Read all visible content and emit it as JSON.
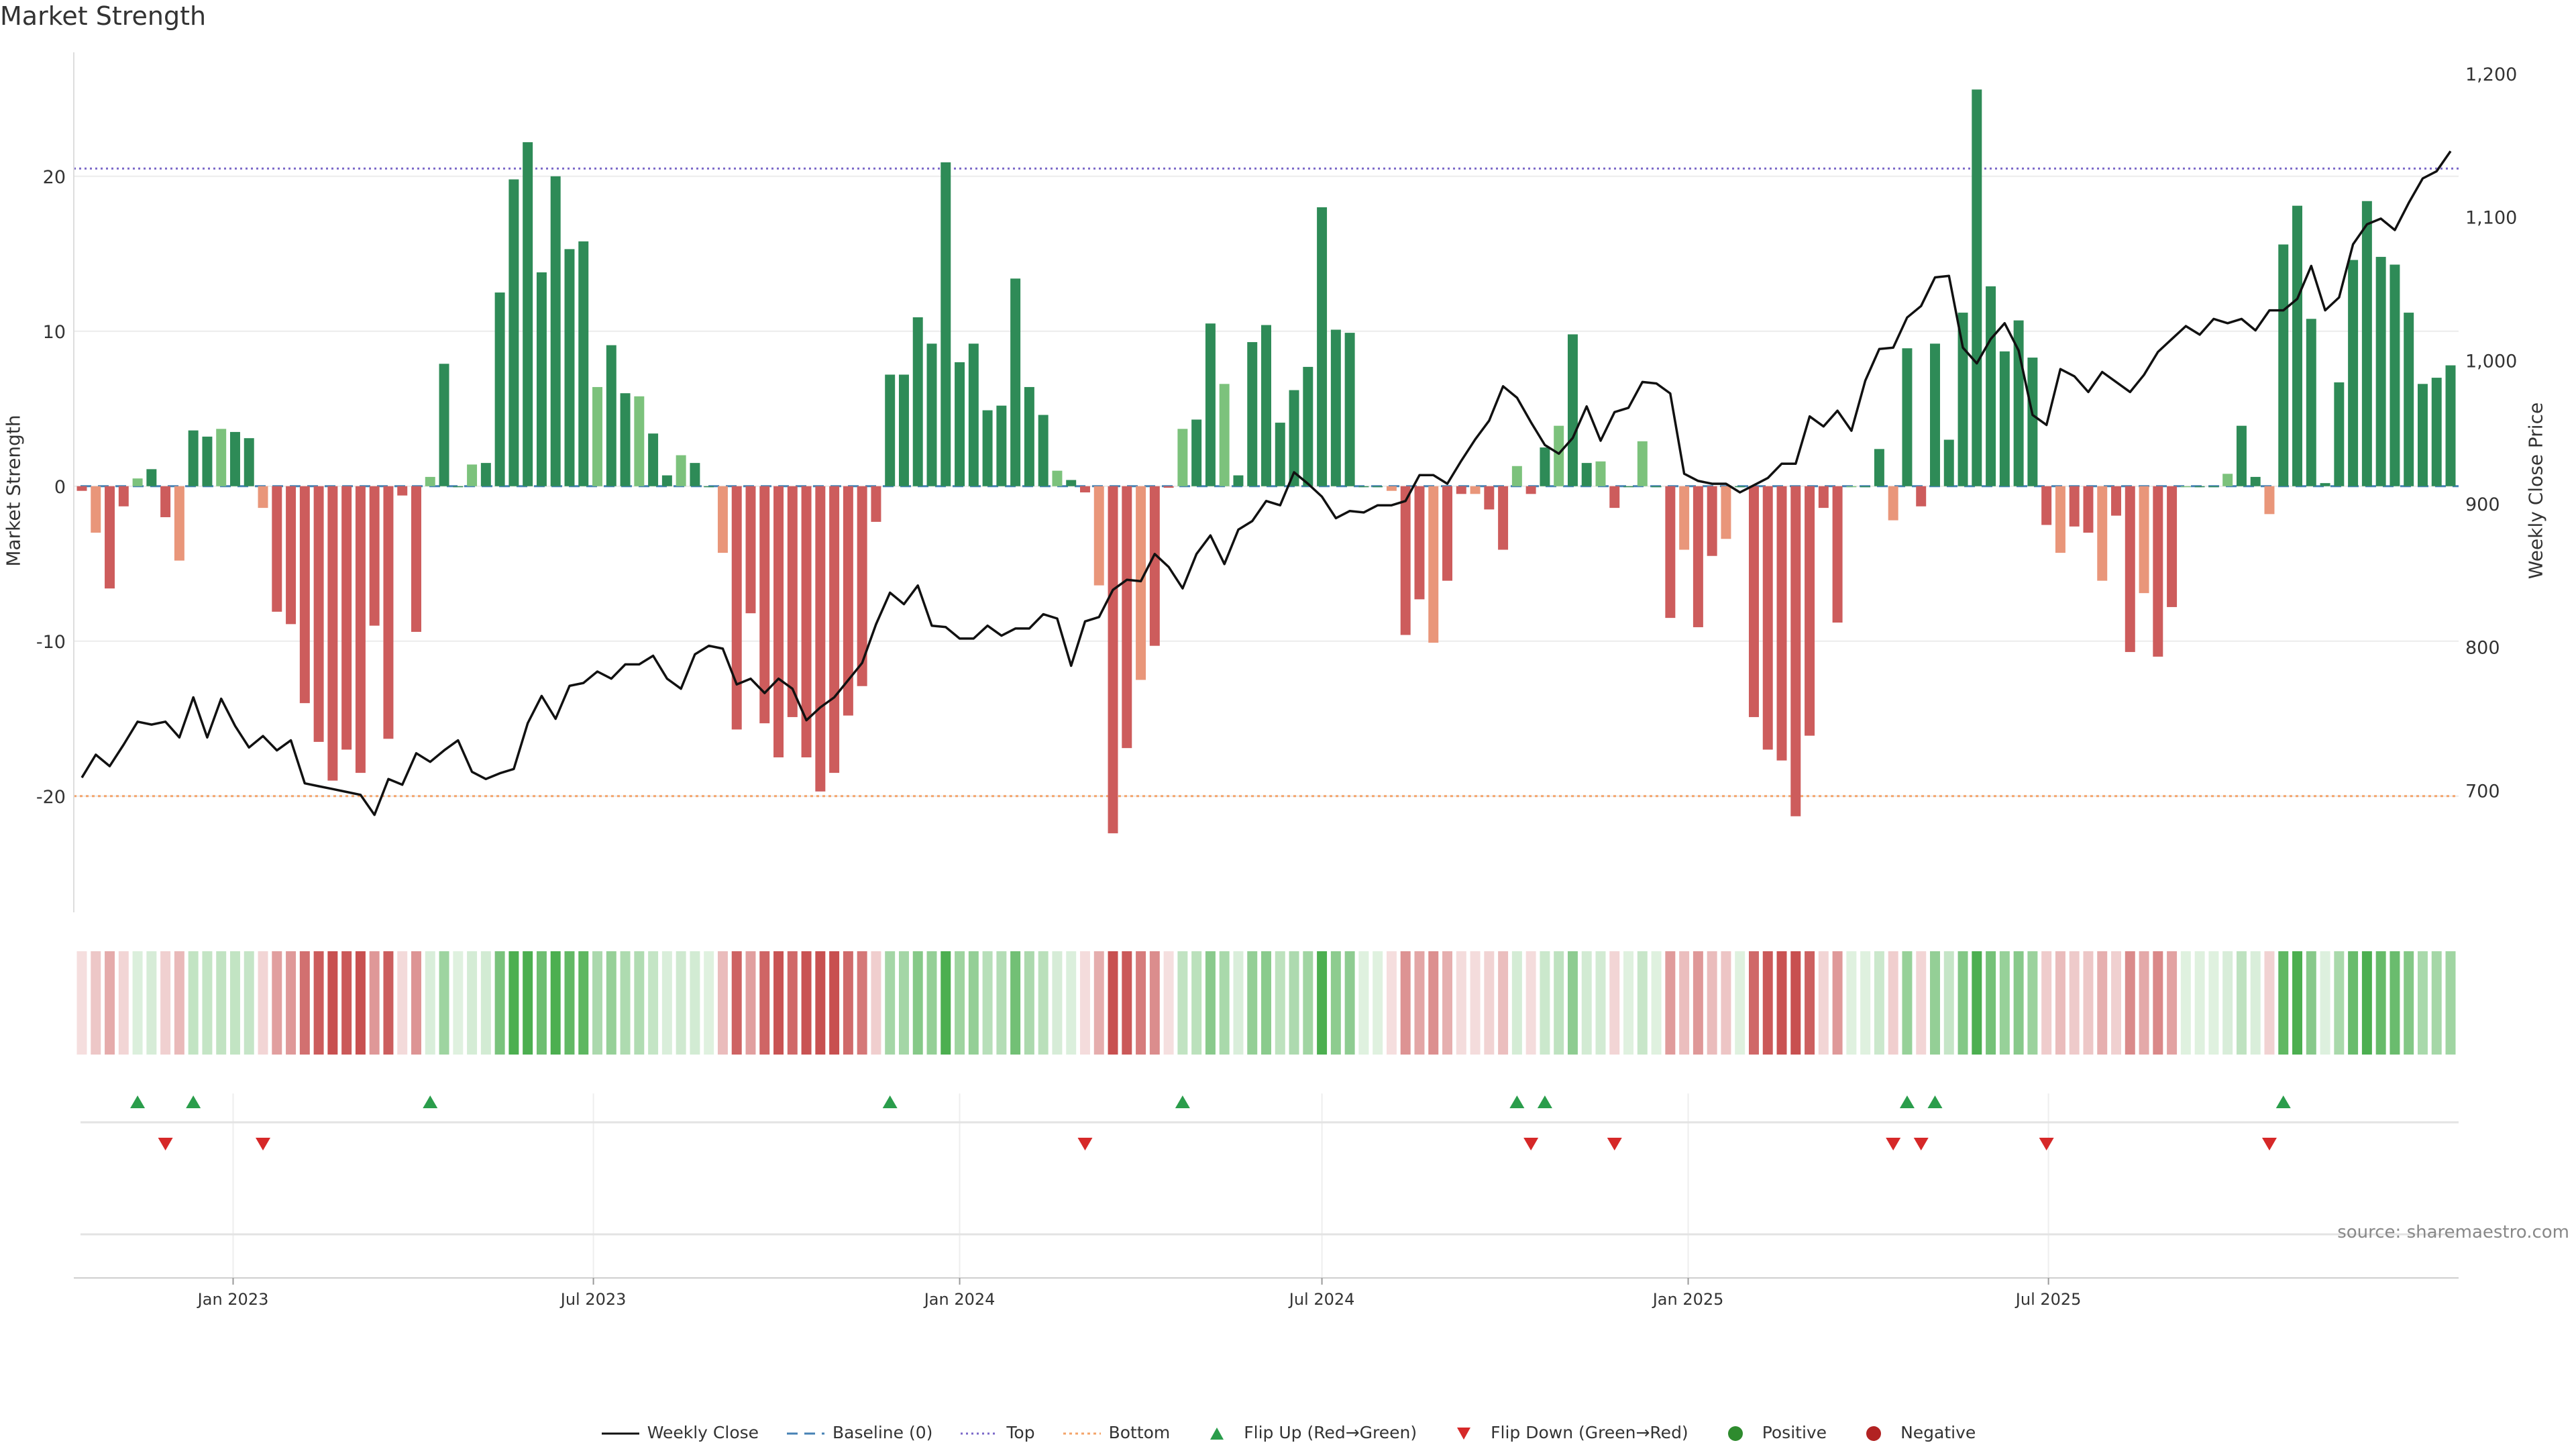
{
  "title": "Market Strength",
  "left_axis_label": "Market Strength",
  "right_axis_label": "Weekly Close Price",
  "source": "source: sharemaestro.com",
  "colors": {
    "strong_pos": "#2e8b57",
    "weak_pos": "#7cc27c",
    "strong_neg": "#cd5c5c",
    "weak_neg": "#e9967a",
    "price_line": "#111111",
    "top_line": "#7b68c8",
    "bottom_line": "#f4a46a",
    "baseline": "#4682b4",
    "flip_up": "#2a9d4b",
    "flip_down": "#d62828"
  },
  "legend": [
    {
      "label": "Weekly Close",
      "symbol": "line"
    },
    {
      "label": "Baseline (0)",
      "symbol": "dash"
    },
    {
      "label": "Top",
      "symbol": "dot-purple"
    },
    {
      "label": "Bottom",
      "symbol": "dot-orange"
    },
    {
      "label": "Flip Up (Red→Green)",
      "symbol": "triangle-up"
    },
    {
      "label": "Flip Down (Green→Red)",
      "symbol": "triangle-down"
    },
    {
      "label": "Positive",
      "symbol": "circle-green"
    },
    {
      "label": "Negative",
      "symbol": "circle-red"
    }
  ],
  "chart_data": {
    "type": "bar",
    "x_start": "2022-10-17",
    "x_step_days": 7,
    "left_ylim": [
      -27.5,
      28
    ],
    "left_yticks": [
      -20,
      -10,
      0,
      10,
      20
    ],
    "right_ylim": [
      615,
      1215
    ],
    "right_yticks": [
      700,
      800,
      900,
      1000,
      1100,
      1200
    ],
    "right_ytick_labels": [
      "700",
      "800",
      "900",
      "1,000",
      "1,100",
      "1,200"
    ],
    "top_level": 20.5,
    "bottom_level": -20,
    "x_tick_labels": [
      {
        "date": "2023-01-01",
        "label": "Jan 2023"
      },
      {
        "date": "2023-07-01",
        "label": "Jul 2023"
      },
      {
        "date": "2024-01-01",
        "label": "Jan 2024"
      },
      {
        "date": "2024-07-01",
        "label": "Jul 2024"
      },
      {
        "date": "2025-01-01",
        "label": "Jan 2025"
      },
      {
        "date": "2025-07-01",
        "label": "Jul 2025"
      }
    ],
    "strength": [
      -0.3,
      -3,
      -6.6,
      -1.3,
      0.5,
      1.1,
      -2,
      -4.8,
      3.6,
      3.2,
      3.7,
      3.5,
      3.1,
      -1.4,
      -8.1,
      -8.9,
      -14,
      -16.5,
      -19,
      -17,
      -18.5,
      -9,
      -16.3,
      -0.6,
      -9.4,
      0.6,
      7.9,
      0,
      1.4,
      1.5,
      12.5,
      19.8,
      22.2,
      13.8,
      20,
      15.3,
      15.8,
      6.4,
      9.1,
      6,
      5.8,
      3.4,
      0.7,
      2,
      1.5,
      0,
      -4.3,
      -15.7,
      -8.2,
      -15.3,
      -17.5,
      -14.9,
      -17.5,
      -19.7,
      -18.5,
      -14.8,
      -12.9,
      -2.3,
      7.2,
      7.2,
      10.9,
      9.2,
      20.9,
      8,
      9.2,
      4.9,
      5.2,
      13.4,
      6.4,
      4.6,
      1,
      0.4,
      -0.4,
      -6.4,
      -22.4,
      -16.9,
      -12.5,
      -10.3,
      -0.1,
      3.7,
      4.3,
      10.5,
      6.6,
      0.7,
      9.3,
      10.4,
      4.1,
      6.2,
      7.7,
      18,
      10.1,
      9.9,
      0,
      0,
      -0.3,
      -9.6,
      -7.3,
      -10.1,
      -6.1,
      -0.5,
      -0.5,
      -1.5,
      -4.1,
      1.3,
      -0.5,
      2.5,
      3.9,
      9.8,
      1.5,
      1.6,
      -1.4,
      0,
      2.9,
      0,
      -8.5,
      -4.1,
      -9.1,
      -4.5,
      -3.4,
      0,
      -14.9,
      -17,
      -17.7,
      -21.3,
      -16.1,
      -1.4,
      -8.8,
      0,
      0,
      2.4,
      -2.2,
      8.9,
      -1.3,
      9.2,
      3,
      11.2,
      25.6,
      12.9,
      8.7,
      10.7,
      8.3,
      -2.5,
      -4.3,
      -2.6,
      -3,
      -6.1,
      -1.9,
      -10.7,
      -6.9,
      -11,
      -7.8,
      0,
      0,
      0,
      0.8,
      3.9,
      0.6,
      -1.8,
      15.6,
      18.1,
      10.8,
      0.2,
      6.7,
      14.6,
      18.4,
      14.8,
      14.3,
      11.2,
      6.6,
      7,
      7.8
    ],
    "price": [
      709,
      725,
      717,
      732,
      748,
      746,
      748,
      737,
      765,
      737,
      764,
      745,
      730,
      738,
      728,
      735,
      705,
      703,
      701,
      699,
      697,
      683,
      708,
      704,
      726,
      720,
      728,
      735,
      713,
      708,
      712,
      715,
      747,
      766,
      750,
      773,
      775,
      783,
      778,
      788,
      788,
      794,
      778,
      771,
      795,
      801,
      799,
      774,
      778,
      768,
      778,
      771,
      749,
      758,
      765,
      777,
      789,
      816,
      838,
      830,
      843,
      815,
      814,
      806,
      806,
      815,
      808,
      813,
      813,
      823,
      820,
      787,
      818,
      821,
      840,
      847,
      846,
      865,
      856,
      841,
      865,
      878,
      858,
      882,
      888,
      902,
      899,
      922,
      914,
      905,
      890,
      895,
      894,
      899,
      899,
      902,
      920,
      920,
      914,
      930,
      945,
      958,
      982,
      974,
      957,
      941,
      935,
      946,
      968,
      944,
      964,
      967,
      985,
      984,
      977,
      921,
      916,
      914,
      914,
      908,
      913,
      918,
      928,
      928,
      961,
      954,
      965,
      951,
      986,
      1008,
      1009,
      1030,
      1038,
      1058,
      1059,
      1009,
      998,
      1015,
      1026,
      1007,
      962,
      955,
      994,
      989,
      978,
      992,
      985,
      978,
      990,
      1006,
      1015,
      1024,
      1018,
      1029,
      1026,
      1029,
      1021,
      1035,
      1035,
      1043,
      1066,
      1035,
      1044,
      1081,
      1095,
      1099,
      1091,
      1110,
      1127,
      1132,
      1146
    ]
  }
}
